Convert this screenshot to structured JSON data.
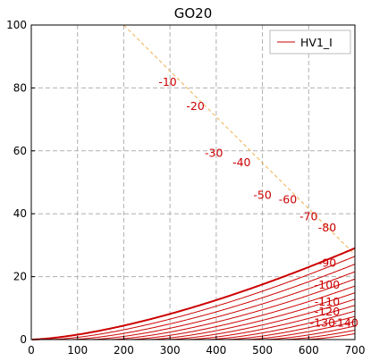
{
  "chart_data": {
    "type": "line",
    "title": "GO20",
    "xlabel": "",
    "ylabel": "",
    "xlim": [
      0,
      700
    ],
    "ylim": [
      0,
      100
    ],
    "xticks": [
      0,
      100,
      200,
      300,
      400,
      500,
      600,
      700
    ],
    "yticks": [
      0,
      20,
      40,
      60,
      80,
      100
    ],
    "grid": true,
    "legend": {
      "position": "top-right",
      "entries": [
        "HV1_I"
      ]
    },
    "colors": {
      "curve": "#cc0000",
      "load_line": "#f0b050",
      "grid": "#b0b0b0"
    },
    "grid_voltages": [
      0,
      -10,
      -20,
      -30,
      -40,
      -50,
      -60,
      -70,
      -80,
      -90,
      -100,
      -110,
      -120,
      -130,
      -140
    ],
    "curve_labels": [
      {
        "text": "-10",
        "x": 295,
        "y": 81.8
      },
      {
        "text": "-20",
        "x": 355,
        "y": 74.2
      },
      {
        "text": "-30",
        "x": 395,
        "y": 59.2
      },
      {
        "text": "-40",
        "x": 455,
        "y": 56.3
      },
      {
        "text": "-50",
        "x": 500,
        "y": 45.9
      },
      {
        "text": "-60",
        "x": 555,
        "y": 44.5
      },
      {
        "text": "-70",
        "x": 600,
        "y": 39.0
      },
      {
        "text": "-80",
        "x": 640,
        "y": 35.5
      },
      {
        "text": "-90",
        "x": 640,
        "y": 24.3
      },
      {
        "text": "-100",
        "x": 640,
        "y": 17.3
      },
      {
        "text": "-110",
        "x": 640,
        "y": 12.0
      },
      {
        "text": "-120",
        "x": 640,
        "y": 8.8
      },
      {
        "text": "-130",
        "x": 630,
        "y": 5.3
      },
      {
        "text": "-140",
        "x": 680,
        "y": 5.3
      }
    ],
    "load_line": {
      "x": [
        200,
        700
      ],
      "y": [
        100,
        27
      ]
    },
    "emphasized_series": "HV1_I"
  }
}
